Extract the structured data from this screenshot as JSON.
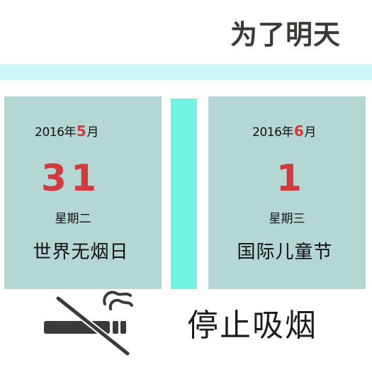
{
  "header": {
    "title": "为了明天"
  },
  "cards": [
    {
      "year_month_prefix": "2016年",
      "month_number": "5",
      "month_suffix": "月",
      "day": "31",
      "weekday": "星期二",
      "event": "世界无烟日"
    },
    {
      "year_month_prefix": "2016年",
      "month_number": "6",
      "month_suffix": "月",
      "day": "1",
      "weekday": "星期三",
      "event": "国际儿童节"
    }
  ],
  "footer": {
    "icon": "no-smoking-icon",
    "slogan": "停止吸烟"
  },
  "colors": {
    "stripe": "#cdf7f6",
    "card": "#b5d7d4",
    "divider": "#72f2e1",
    "accent": "#cf3b3f",
    "title": "#3b3a37"
  }
}
